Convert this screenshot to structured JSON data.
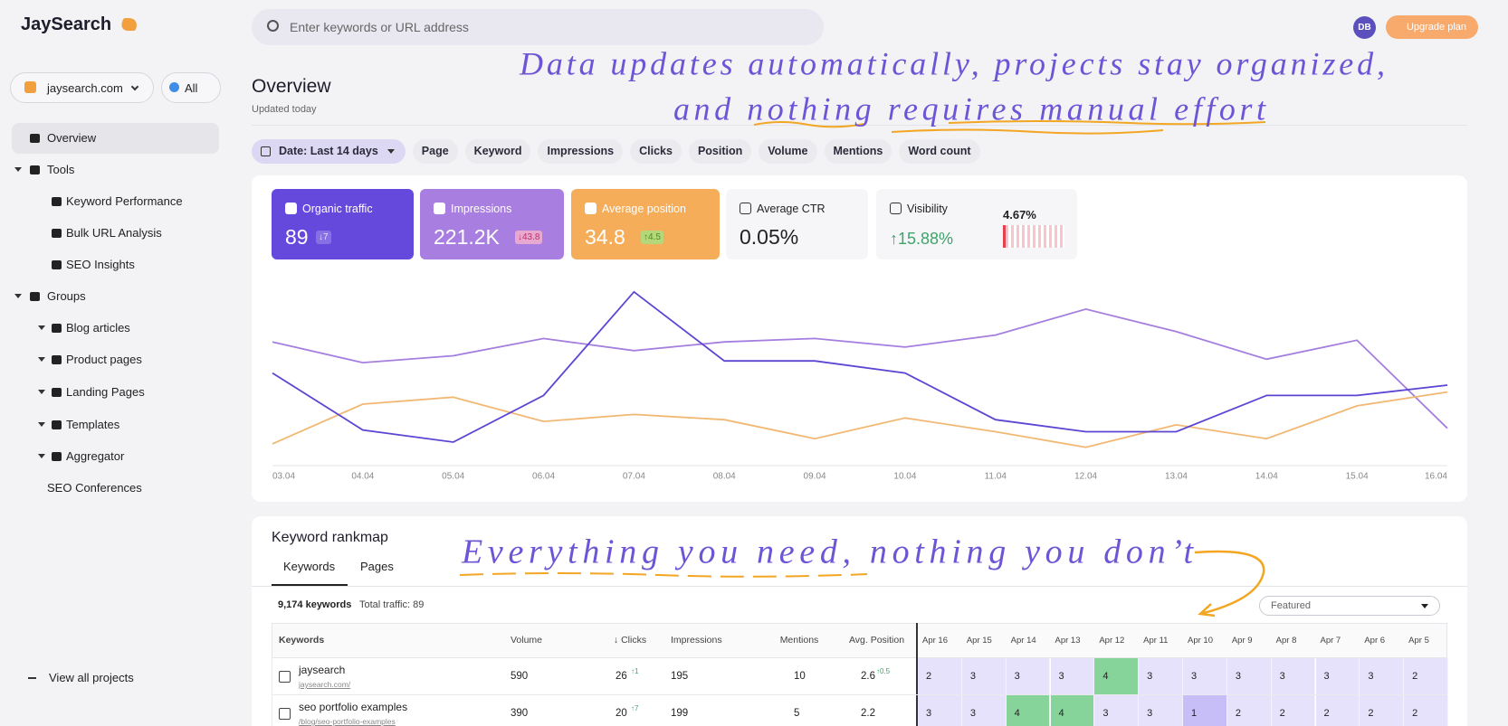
{
  "app": {
    "logo": "JaySearch",
    "search_placeholder": "Enter keywords or URL address",
    "avatar": "DB",
    "upgrade": "Upgrade plan"
  },
  "sidebar": {
    "project": "jaysearch.com",
    "filter": "All",
    "nav": [
      "Overview",
      {
        "label": "Tools",
        "children": [
          "Keyword Performance",
          "Bulk URL Analysis",
          "SEO Insights"
        ]
      },
      {
        "label": "Groups",
        "children": [
          "Blog articles",
          "Product pages",
          "Landing Pages",
          "Templates",
          "Aggregator"
        ]
      },
      "SEO Conferences"
    ],
    "footer": "View all projects"
  },
  "header": {
    "title": "Overview",
    "subtitle": "Updated today"
  },
  "annotations": {
    "top": [
      "Data updates automatically, projects stay organized,",
      "and nothing requires manual effort"
    ],
    "middle": "Everything you need, nothing you don’t"
  },
  "filters": [
    "Date: Last 14 days",
    "Page",
    "Keyword",
    "Impressions",
    "Clicks",
    "Position",
    "Volume",
    "Mentions",
    "Word count"
  ],
  "metrics": [
    {
      "label": "Organic traffic",
      "value": "89",
      "delta": "↓7"
    },
    {
      "label": "Impressions",
      "value": "221.2K",
      "delta": "↓43.8"
    },
    {
      "label": "Average position",
      "value": "34.8",
      "delta": "↑4.5"
    },
    {
      "label": "Average CTR",
      "value": "0.05%"
    },
    {
      "label": "Visibility",
      "value": "↑15.88%",
      "delta": "4.67%"
    }
  ],
  "chart_data": {
    "type": "line",
    "categories": [
      "03.04",
      "04.04",
      "05.04",
      "06.04",
      "07.04",
      "08.04",
      "09.04",
      "10.04",
      "11.04",
      "12.04",
      "13.04",
      "14.04",
      "15.04",
      "16.04"
    ],
    "series": [
      {
        "color": "#a57fdf",
        "values": [
          69,
          57,
          61,
          71,
          64,
          69,
          71,
          66,
          73,
          88,
          75,
          59,
          70,
          19
        ]
      },
      {
        "color": "#f1b873",
        "values": [
          10,
          33,
          37,
          23,
          27,
          24,
          13,
          25,
          17,
          8,
          21,
          13,
          32,
          40
        ]
      },
      {
        "color": "#5d45d3",
        "values": [
          51,
          18,
          11,
          38,
          98,
          58,
          58,
          51,
          24,
          17,
          17,
          38,
          38,
          44
        ]
      }
    ],
    "ylim": [
      0,
      100
    ]
  },
  "rankmap": {
    "title": "Keyword rankmap",
    "tabs": [
      "Keywords",
      "Pages"
    ],
    "count": "9,174 keywords",
    "traffic": "Total traffic: 89",
    "sort": "Featured",
    "columns": [
      "Keywords",
      "Volume",
      "↓ Clicks",
      "Impressions",
      "Mentions",
      "Avg. Position"
    ],
    "dates": [
      "Apr 16",
      "Apr 15",
      "Apr 14",
      "Apr 13",
      "Apr 12",
      "Apr 11",
      "Apr 10",
      "Apr 9",
      "Apr 8",
      "Apr 7",
      "Apr 6",
      "Apr 5"
    ],
    "rows": [
      {
        "keyword": "jaysearch",
        "url": "jaysearch.com/",
        "volume": 590,
        "clicks": 26,
        "clicks_delta": "↑1",
        "impressions": 195,
        "mentions": 10,
        "position": 2.6,
        "position_delta": "↑0.5",
        "ranks": [
          2,
          3,
          3,
          3,
          4,
          3,
          3,
          3,
          3,
          3,
          3,
          2
        ]
      },
      {
        "keyword": "seo portfolio examples",
        "url": "/blog/seo-portfolio-examples",
        "volume": 390,
        "clicks": 20,
        "clicks_delta": "↑7",
        "impressions": 199,
        "mentions": 5,
        "position": 2.2,
        "ranks": [
          3,
          3,
          4,
          4,
          3,
          3,
          1,
          2,
          2,
          2,
          2,
          2
        ]
      }
    ]
  }
}
